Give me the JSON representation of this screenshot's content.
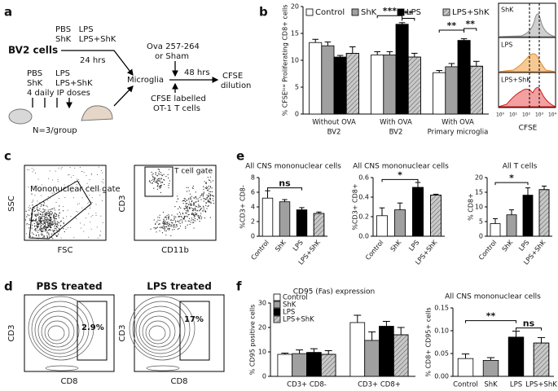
{
  "panel_labels": [
    "a",
    "b",
    "c",
    "d",
    "e",
    "f"
  ],
  "diagram": {
    "labels": [
      "BV2 cells",
      "PBS   LPS",
      "ShK   LPS+ShK",
      "24 hrs",
      "PBS",
      "LPS",
      "ShK",
      "LPS+ShK",
      "4 daily IP doses",
      "N=3/group",
      "Microglia",
      "Ova 257-264",
      "or Sham",
      "48 hrs",
      "CFSE labelled",
      "OT-1 T cells",
      "CFSE",
      "dilution"
    ]
  },
  "histograms": {
    "labels": [
      "ShK",
      "LPS",
      "LPS+ShK"
    ],
    "xticks": [
      "10⁰",
      "10¹",
      "10²",
      "10³",
      "10⁴"
    ],
    "xlabel": "CFSE"
  },
  "flow_c": {
    "left": {
      "ylabel": "SSC",
      "xlabel": "FSC",
      "gate": "Mononuclear cell gate"
    },
    "right": {
      "ylabel": "CD3",
      "xlabel": "CD11b",
      "gate": "T cell gate"
    }
  },
  "flow_d": {
    "left": {
      "title": "PBS treated",
      "ylabel": "CD3",
      "xlabel": "CD8",
      "gate_value": "2.9%"
    },
    "right": {
      "title": "LPS treated",
      "ylabel": "CD3",
      "xlabel": "CD8",
      "gate_value": "17%"
    }
  },
  "chart_data": [
    {
      "type": "bar",
      "ylabel": "% CFSEˡᵒʷ Proliferating CD8+ cells",
      "categories": [
        "Without OVA",
        "With OVA",
        "With OVA"
      ],
      "category_sublabels": [
        "BV2",
        "BV2",
        "Primary microglia"
      ],
      "series": [
        {
          "name": "Control",
          "color": "#ffffff",
          "hatch": false,
          "values": [
            13.3,
            11,
            7.7
          ],
          "errors": [
            0.6,
            0.6,
            0.4
          ]
        },
        {
          "name": "ShK",
          "color": "#a0a0a0",
          "hatch": false,
          "values": [
            12.7,
            11,
            8.8
          ],
          "errors": [
            0.7,
            0.6,
            0.6
          ]
        },
        {
          "name": "LPS",
          "color": "#000000",
          "hatch": false,
          "values": [
            10.6,
            16.7,
            13.7
          ],
          "errors": [
            0.3,
            0.3,
            0.3
          ]
        },
        {
          "name": "LPS+ShK",
          "color": "#c8c8c8",
          "hatch": true,
          "values": [
            11.3,
            10.6,
            8.9
          ],
          "errors": [
            1.2,
            0.7,
            0.9
          ]
        }
      ],
      "ylim": [
        0,
        20
      ],
      "yticks": [
        0,
        5,
        10,
        15,
        20
      ],
      "annotations": [
        "***",
        "**",
        "**",
        "**"
      ]
    },
    {
      "type": "bar",
      "title": "All CNS mononuclear cells",
      "ylabel": "%CD3+ CD8-",
      "categories": [
        "Control",
        "ShK",
        "LPS",
        "LPS+ShK"
      ],
      "values": [
        5.2,
        4.7,
        3.6,
        3.1
      ],
      "errors": [
        1.0,
        0.3,
        0.3,
        0.2
      ],
      "colors": [
        "#ffffff",
        "#a0a0a0",
        "#000000",
        "#c8c8c8"
      ],
      "hatch": [
        false,
        false,
        false,
        true
      ],
      "ylim": [
        0,
        8
      ],
      "yticks": [
        0,
        2,
        4,
        6,
        8
      ],
      "annotations": [
        "ns"
      ]
    },
    {
      "type": "bar",
      "title": "All CNS mononuclear cells",
      "ylabel": "%CD3+ CD8+",
      "categories": [
        "Control",
        "ShK",
        "LPS",
        "LPS+ShK"
      ],
      "values": [
        0.21,
        0.27,
        0.5,
        0.42
      ],
      "errors": [
        0.08,
        0.07,
        0.05,
        0.01
      ],
      "colors": [
        "#ffffff",
        "#a0a0a0",
        "#000000",
        "#c8c8c8"
      ],
      "hatch": [
        false,
        false,
        false,
        true
      ],
      "ylim": [
        0,
        0.6
      ],
      "yticks": [
        {
          "value": 0,
          "label": "0.0"
        },
        0.2,
        0.4,
        0.6
      ],
      "annotations": [
        "*"
      ]
    },
    {
      "type": "bar",
      "title": "All T cells",
      "ylabel": "% CD8+",
      "categories": [
        "Control",
        "ShK",
        "LPS",
        "LPS+ShK"
      ],
      "values": [
        4.3,
        7.3,
        14,
        15.9
      ],
      "errors": [
        1.7,
        1.7,
        2.5,
        1.2
      ],
      "colors": [
        "#ffffff",
        "#a0a0a0",
        "#000000",
        "#c8c8c8"
      ],
      "hatch": [
        false,
        false,
        false,
        true
      ],
      "ylim": [
        0,
        20
      ],
      "yticks": [
        0,
        5,
        10,
        15,
        20
      ],
      "annotations": [
        "*"
      ]
    },
    {
      "type": "bar",
      "title": "CD95 (Fas) expression",
      "ylabel": "% CD95 positive cells",
      "categories": [
        "CD3+ CD8-",
        "CD3+ CD8+"
      ],
      "series": [
        {
          "name": "Control",
          "color": "#ffffff",
          "hatch": false,
          "values": [
            9,
            22
          ],
          "errors": [
            0.5,
            3
          ]
        },
        {
          "name": "ShK",
          "color": "#a0a0a0",
          "hatch": false,
          "values": [
            9.3,
            14.7
          ],
          "errors": [
            1.5,
            3.5
          ]
        },
        {
          "name": "LPS",
          "color": "#000000",
          "hatch": false,
          "values": [
            9.8,
            20.5
          ],
          "errors": [
            1.5,
            2
          ]
        },
        {
          "name": "LPS+ShK",
          "color": "#c8c8c8",
          "hatch": true,
          "values": [
            9,
            17
          ],
          "errors": [
            1.5,
            3
          ]
        }
      ],
      "ylim": [
        0,
        30
      ],
      "yticks": [
        0,
        10,
        20,
        30
      ]
    },
    {
      "type": "bar",
      "title": "All CNS mononuclear  cells",
      "ylabel": "% CD8+ CD95+ cells",
      "categories": [
        "Control",
        "ShK",
        "LPS",
        "LPS+ShK"
      ],
      "values": [
        0.039,
        0.035,
        0.086,
        0.073
      ],
      "errors": [
        0.01,
        0.006,
        0.013,
        0.012
      ],
      "colors": [
        "#ffffff",
        "#a0a0a0",
        "#000000",
        "#c8c8c8"
      ],
      "hatch": [
        false,
        false,
        false,
        true
      ],
      "ylim": [
        0,
        0.15
      ],
      "yticks": [
        {
          "value": 0,
          "label": "0.00"
        },
        {
          "value": 0.05,
          "label": "0.05"
        },
        {
          "value": 0.1,
          "label": "0.10"
        },
        {
          "value": 0.15,
          "label": "0.15"
        }
      ],
      "annotations": [
        "**",
        "ns"
      ]
    }
  ]
}
